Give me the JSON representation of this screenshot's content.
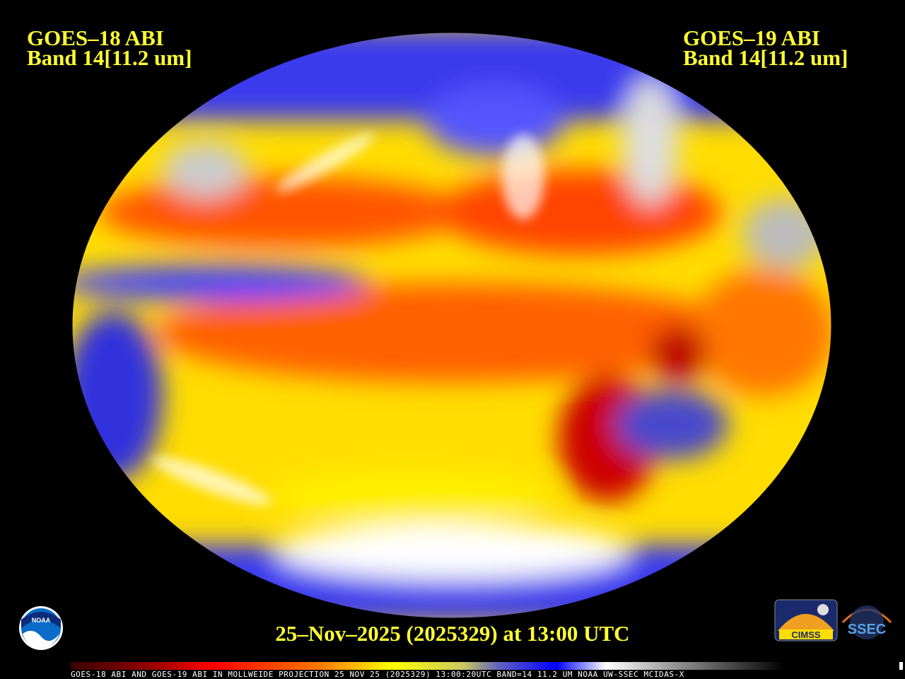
{
  "left_title": {
    "line1": "GOES–18 ABI",
    "line2": "Band 14[11.2 um]"
  },
  "right_title": {
    "line1": "GOES–19 ABI",
    "line2": "Band 14[11.2 um]"
  },
  "timestamp": "25–Nov–2025 (2025329) at 13:00 UTC",
  "footer": "GOES-18 ABI AND GOES-19 ABI IN MOLLWEIDE PROJECTION 25 NOV 25 (2025329) 13:00:20UTC BAND=14 11.2 UM NOAA UW-SSEC MCIDAS-X",
  "logos": {
    "noaa": "NOAA",
    "cimss": "CIMSS",
    "ssec": "SSEC"
  },
  "colors": {
    "title": "#ffff33",
    "warm": "#ff3300",
    "mid": "#ffff00",
    "cold": "#2020ff",
    "cloud": "#ffffff"
  },
  "projection": "Mollweide"
}
